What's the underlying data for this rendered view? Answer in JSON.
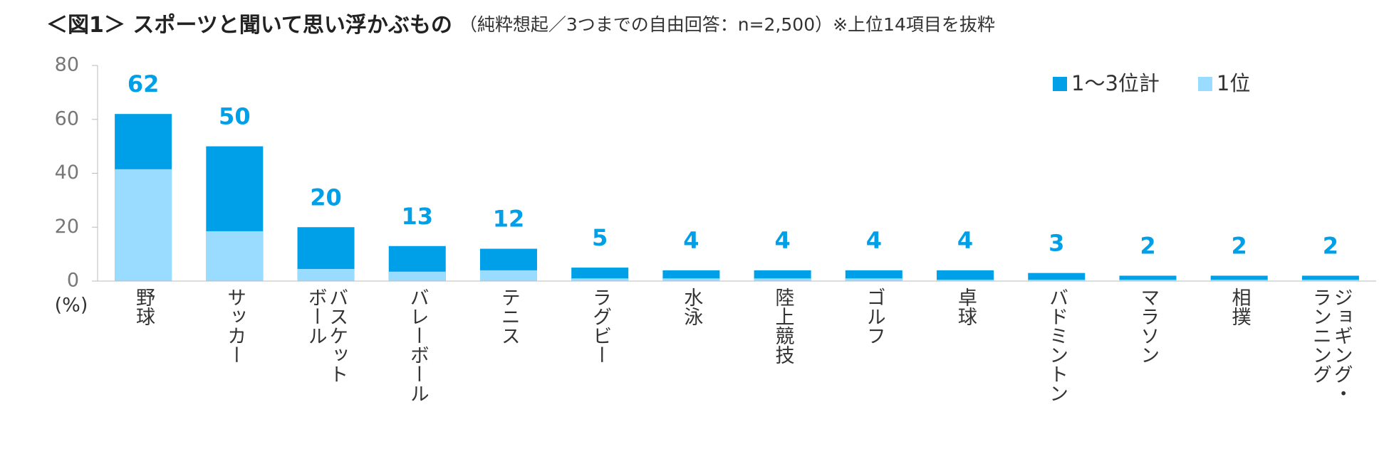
{
  "chart_data": {
    "type": "bar",
    "title": "＜図1＞ スポーツと聞いて思い浮かぶもの",
    "subtitle": "（純粋想起／3つまでの自由回答：n=2,500）※上位14項目を抜粋",
    "y_label": "(%)",
    "categories": [
      "野球",
      "サッカー",
      "バスケット\nボール",
      "バレーボール",
      "テニス",
      "ラグビー",
      "水泳",
      "陸上競技",
      "ゴルフ",
      "卓球",
      "バドミントン",
      "マラソン",
      "相撲",
      "ジョギング・\nランニング"
    ],
    "series": [
      {
        "name": "1～3位計",
        "color": "#00a0e9",
        "values": [
          62,
          50,
          20,
          13,
          12,
          5,
          4,
          4,
          4,
          4,
          3,
          2,
          2,
          2
        ],
        "show_labels": true
      },
      {
        "name": "1位",
        "color": "#99dcff",
        "values": [
          41.5,
          18.5,
          4.5,
          3.5,
          4,
          1,
          1,
          1,
          1,
          0.5,
          0.5,
          0.5,
          0.5,
          0.5
        ],
        "show_labels": false
      }
    ],
    "ylim": [
      0,
      80
    ],
    "yticks": [
      0,
      20,
      40,
      60,
      80
    ],
    "grid": false,
    "legend": "top-right"
  }
}
